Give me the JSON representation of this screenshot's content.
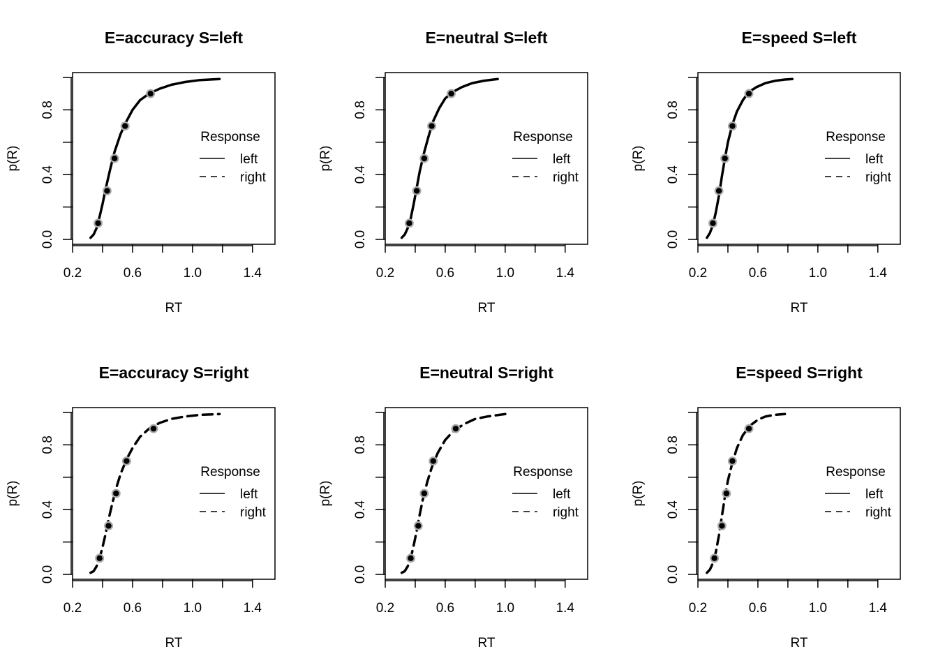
{
  "chart_data": [
    {
      "type": "line",
      "title": "E=accuracy S=left",
      "xlabel": "RT",
      "ylabel": "p(R)",
      "xlim": [
        0.2,
        1.55
      ],
      "ylim": [
        -0.03,
        1.03
      ],
      "xticks": [
        "0.2",
        "0.6",
        "1.0",
        "1.4"
      ],
      "yticks": [
        "0.0",
        "0.4",
        "0.8"
      ],
      "legend": {
        "title": "Response",
        "entries": [
          "left",
          "right"
        ],
        "placement": "right"
      },
      "series": [
        {
          "name": "left",
          "style": "solid",
          "x": [
            0.32,
            0.34,
            0.36,
            0.38,
            0.4,
            0.42,
            0.45,
            0.48,
            0.52,
            0.56,
            0.6,
            0.65,
            0.71,
            0.78,
            0.86,
            0.95,
            1.05,
            1.18
          ],
          "y": [
            0.01,
            0.03,
            0.07,
            0.14,
            0.22,
            0.31,
            0.43,
            0.54,
            0.65,
            0.73,
            0.8,
            0.86,
            0.9,
            0.93,
            0.955,
            0.972,
            0.984,
            0.99
          ],
          "quantiles_x": [
            0.37,
            0.43,
            0.48,
            0.55,
            0.72
          ],
          "quantiles_y": [
            0.1,
            0.3,
            0.5,
            0.7,
            0.9
          ]
        }
      ]
    },
    {
      "type": "line",
      "title": "E=neutral S=left",
      "xlabel": "RT",
      "ylabel": "p(R)",
      "xlim": [
        0.2,
        1.55
      ],
      "ylim": [
        -0.03,
        1.03
      ],
      "xticks": [
        "0.2",
        "0.6",
        "1.0",
        "1.4"
      ],
      "yticks": [
        "0.0",
        "0.4",
        "0.8"
      ],
      "legend": {
        "title": "Response",
        "entries": [
          "left",
          "right"
        ],
        "placement": "right"
      },
      "series": [
        {
          "name": "left",
          "style": "solid",
          "x": [
            0.31,
            0.33,
            0.35,
            0.37,
            0.39,
            0.41,
            0.43,
            0.46,
            0.49,
            0.52,
            0.56,
            0.6,
            0.65,
            0.71,
            0.78,
            0.86,
            0.95
          ],
          "y": [
            0.01,
            0.03,
            0.07,
            0.13,
            0.22,
            0.32,
            0.42,
            0.54,
            0.64,
            0.73,
            0.81,
            0.87,
            0.91,
            0.94,
            0.965,
            0.98,
            0.99
          ],
          "quantiles_x": [
            0.36,
            0.41,
            0.46,
            0.51,
            0.64
          ],
          "quantiles_y": [
            0.1,
            0.3,
            0.5,
            0.7,
            0.9
          ]
        }
      ]
    },
    {
      "type": "line",
      "title": "E=speed S=left",
      "xlabel": "RT",
      "ylabel": "p(R)",
      "xlim": [
        0.2,
        1.55
      ],
      "ylim": [
        -0.03,
        1.03
      ],
      "xticks": [
        "0.2",
        "0.6",
        "1.0",
        "1.4"
      ],
      "yticks": [
        "0.0",
        "0.4",
        "0.8"
      ],
      "legend": {
        "title": "Response",
        "entries": [
          "left",
          "right"
        ],
        "placement": "right"
      },
      "series": [
        {
          "name": "left",
          "style": "solid",
          "x": [
            0.26,
            0.28,
            0.3,
            0.32,
            0.34,
            0.36,
            0.38,
            0.4,
            0.43,
            0.46,
            0.5,
            0.54,
            0.59,
            0.65,
            0.72,
            0.78,
            0.83
          ],
          "y": [
            0.01,
            0.04,
            0.09,
            0.17,
            0.27,
            0.39,
            0.5,
            0.6,
            0.71,
            0.79,
            0.86,
            0.91,
            0.94,
            0.965,
            0.98,
            0.987,
            0.99
          ],
          "quantiles_x": [
            0.3,
            0.34,
            0.38,
            0.43,
            0.54
          ],
          "quantiles_y": [
            0.1,
            0.3,
            0.5,
            0.7,
            0.9
          ]
        }
      ]
    },
    {
      "type": "line",
      "title": "E=accuracy S=right",
      "xlabel": "RT",
      "ylabel": "p(R)",
      "xlim": [
        0.2,
        1.55
      ],
      "ylim": [
        -0.03,
        1.03
      ],
      "xticks": [
        "0.2",
        "0.6",
        "1.0",
        "1.4"
      ],
      "yticks": [
        "0.0",
        "0.4",
        "0.8"
      ],
      "legend": {
        "title": "Response",
        "entries": [
          "left",
          "right"
        ],
        "placement": "right"
      },
      "series": [
        {
          "name": "right",
          "style": "dashed",
          "x": [
            0.32,
            0.34,
            0.36,
            0.38,
            0.4,
            0.42,
            0.44,
            0.46,
            0.49,
            0.52,
            0.56,
            0.6,
            0.65,
            0.71,
            0.78,
            0.86,
            0.95,
            1.05,
            1.18
          ],
          "y": [
            0.01,
            0.02,
            0.05,
            0.1,
            0.17,
            0.25,
            0.34,
            0.42,
            0.53,
            0.62,
            0.71,
            0.78,
            0.85,
            0.9,
            0.935,
            0.96,
            0.975,
            0.985,
            0.99
          ],
          "quantiles_x": [
            0.38,
            0.44,
            0.49,
            0.56,
            0.74
          ],
          "quantiles_y": [
            0.1,
            0.3,
            0.5,
            0.7,
            0.9
          ]
        }
      ]
    },
    {
      "type": "line",
      "title": "E=neutral S=right",
      "xlabel": "RT",
      "ylabel": "p(R)",
      "xlim": [
        0.2,
        1.55
      ],
      "ylim": [
        -0.03,
        1.03
      ],
      "xticks": [
        "0.2",
        "0.6",
        "1.0",
        "1.4"
      ],
      "yticks": [
        "0.0",
        "0.4",
        "0.8"
      ],
      "legend": {
        "title": "Response",
        "entries": [
          "left",
          "right"
        ],
        "placement": "right"
      },
      "series": [
        {
          "name": "right",
          "style": "dashed",
          "x": [
            0.31,
            0.33,
            0.35,
            0.37,
            0.39,
            0.41,
            0.43,
            0.45,
            0.48,
            0.51,
            0.55,
            0.6,
            0.66,
            0.73,
            0.8,
            0.88,
            1.0
          ],
          "y": [
            0.01,
            0.02,
            0.05,
            0.1,
            0.18,
            0.27,
            0.37,
            0.46,
            0.57,
            0.66,
            0.75,
            0.83,
            0.89,
            0.93,
            0.96,
            0.975,
            0.99
          ],
          "quantiles_x": [
            0.37,
            0.42,
            0.46,
            0.52,
            0.67
          ],
          "quantiles_y": [
            0.1,
            0.3,
            0.5,
            0.7,
            0.9
          ]
        }
      ]
    },
    {
      "type": "line",
      "title": "E=speed S=right",
      "xlabel": "RT",
      "ylabel": "p(R)",
      "xlim": [
        0.2,
        1.55
      ],
      "ylim": [
        -0.03,
        1.03
      ],
      "xticks": [
        "0.2",
        "0.6",
        "1.0",
        "1.4"
      ],
      "yticks": [
        "0.0",
        "0.4",
        "0.8"
      ],
      "legend": {
        "title": "Response",
        "entries": [
          "left",
          "right"
        ],
        "placement": "right"
      },
      "series": [
        {
          "name": "right",
          "style": "dashed",
          "x": [
            0.26,
            0.28,
            0.3,
            0.32,
            0.34,
            0.36,
            0.38,
            0.4,
            0.43,
            0.46,
            0.5,
            0.55,
            0.6,
            0.65,
            0.71,
            0.78
          ],
          "y": [
            0.01,
            0.03,
            0.07,
            0.14,
            0.24,
            0.36,
            0.48,
            0.58,
            0.69,
            0.78,
            0.86,
            0.92,
            0.955,
            0.975,
            0.985,
            0.99
          ],
          "quantiles_x": [
            0.31,
            0.36,
            0.39,
            0.43,
            0.54
          ],
          "quantiles_y": [
            0.1,
            0.3,
            0.5,
            0.7,
            0.9
          ]
        }
      ]
    }
  ],
  "colors": {
    "line": "#000000",
    "point": "#000000",
    "point_halo": "#aaaaaa"
  }
}
